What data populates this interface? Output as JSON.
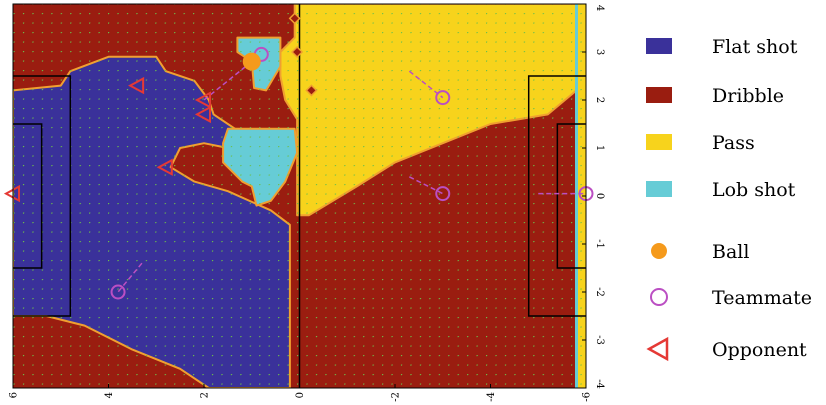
{
  "chart_data": {
    "type": "heatmap",
    "title": "",
    "xlabel": "",
    "ylabel": "",
    "xlim": [
      6,
      -6
    ],
    "ylim": [
      -4,
      4
    ],
    "x_ticks": [
      6,
      4,
      2,
      0,
      -2,
      -4,
      -6
    ],
    "y_ticks": [
      4,
      3,
      2,
      1,
      0,
      -1,
      -2,
      -3,
      -4
    ],
    "grid": false,
    "legend_position": "right",
    "legend": [
      {
        "label": "Flat shot",
        "kind": "region",
        "color": "#3a319a"
      },
      {
        "label": "Dribble",
        "kind": "region",
        "color": "#9a1d10"
      },
      {
        "label": "Pass",
        "kind": "region",
        "color": "#f7d31c"
      },
      {
        "label": "Lob shot",
        "kind": "region",
        "color": "#66ccd6"
      },
      {
        "label": "Ball",
        "kind": "marker-circle-filled",
        "color": "#f59a1c"
      },
      {
        "label": "Teammate",
        "kind": "marker-circle-open",
        "color": "#bb4fc3"
      },
      {
        "label": "Opponent",
        "kind": "marker-triangle-open",
        "color": "#e53935"
      }
    ],
    "regions": [
      {
        "label": "Flat shot",
        "polygon": [
          [
            6,
            2.2
          ],
          [
            5,
            2.3
          ],
          [
            4.8,
            2.6
          ],
          [
            4,
            2.9
          ],
          [
            3,
            2.9
          ],
          [
            2.8,
            2.6
          ],
          [
            2.2,
            2.4
          ],
          [
            1.9,
            2.0
          ],
          [
            1.8,
            1.7
          ],
          [
            1.2,
            1.3
          ],
          [
            1.5,
            1.0
          ],
          [
            2.0,
            1.1
          ],
          [
            2.5,
            1.0
          ],
          [
            2.7,
            0.6
          ],
          [
            2.2,
            0.3
          ],
          [
            1.5,
            0.1
          ],
          [
            0.6,
            -0.3
          ],
          [
            0.2,
            -0.6
          ],
          [
            0.2,
            -4
          ],
          [
            1.9,
            -4
          ],
          [
            2.5,
            -3.6
          ],
          [
            3.5,
            -3.2
          ],
          [
            4.5,
            -2.7
          ],
          [
            5.3,
            -2.5
          ],
          [
            6,
            -2.5
          ]
        ]
      },
      {
        "label": "Pass",
        "polygon": [
          [
            0.1,
            4
          ],
          [
            -3.5,
            4
          ],
          [
            -5.8,
            4
          ],
          [
            -5.8,
            2.2
          ],
          [
            -5.2,
            1.7
          ],
          [
            -4.0,
            1.5
          ],
          [
            -3.0,
            1.1
          ],
          [
            -2.0,
            0.7
          ],
          [
            -1.2,
            0.2
          ],
          [
            -0.2,
            -0.4
          ],
          [
            0.05,
            -0.4
          ],
          [
            0.05,
            1.6
          ],
          [
            0.3,
            2.0
          ],
          [
            0.4,
            2.5
          ],
          [
            0.4,
            3.0
          ],
          [
            0.1,
            3.3
          ]
        ]
      },
      {
        "label": "Lob shot",
        "polygon": [
          [
            1.3,
            3.3
          ],
          [
            0.4,
            3.3
          ],
          [
            0.4,
            2.7
          ],
          [
            0.7,
            2.2
          ],
          [
            0.95,
            2.25
          ],
          [
            1.0,
            2.8
          ],
          [
            1.3,
            3.0
          ]
        ]
      },
      {
        "label": "Lob shot",
        "polygon": [
          [
            1.5,
            1.4
          ],
          [
            0.1,
            1.4
          ],
          [
            0.05,
            0.9
          ],
          [
            0.3,
            0.3
          ],
          [
            0.6,
            -0.1
          ],
          [
            0.9,
            -0.2
          ],
          [
            1.0,
            0.2
          ],
          [
            1.2,
            0.3
          ],
          [
            1.6,
            0.7
          ],
          [
            1.6,
            1.1
          ]
        ]
      }
    ],
    "ball": {
      "x": 1.0,
      "y": 2.8
    },
    "ball_trail": [
      [
        1.0,
        2.8
      ],
      [
        2.0,
        2.0
      ]
    ],
    "diamonds": [
      [
        0.1,
        3.7
      ],
      [
        0.05,
        3.0
      ],
      [
        -0.25,
        2.2
      ]
    ],
    "teammates": [
      {
        "x": 0.8,
        "y": 2.95,
        "from": [
          0.8,
          2.95
        ]
      },
      {
        "x": -3.0,
        "y": 2.05,
        "from": [
          -2.3,
          2.6
        ]
      },
      {
        "x": -3.0,
        "y": 0.05,
        "from": [
          -2.3,
          0.4
        ]
      },
      {
        "x": -6.0,
        "y": 0.05,
        "from": [
          -5.0,
          0.05
        ]
      },
      {
        "x": 3.8,
        "y": -2.0,
        "from": [
          3.3,
          -1.4
        ]
      }
    ],
    "opponents": [
      {
        "x": 6.0,
        "y": 0.05
      },
      {
        "x": 3.4,
        "y": 2.3
      },
      {
        "x": 2.0,
        "y": 1.7
      },
      {
        "x": 2.0,
        "y": 2.0
      },
      {
        "x": 2.8,
        "y": 0.6
      }
    ]
  }
}
